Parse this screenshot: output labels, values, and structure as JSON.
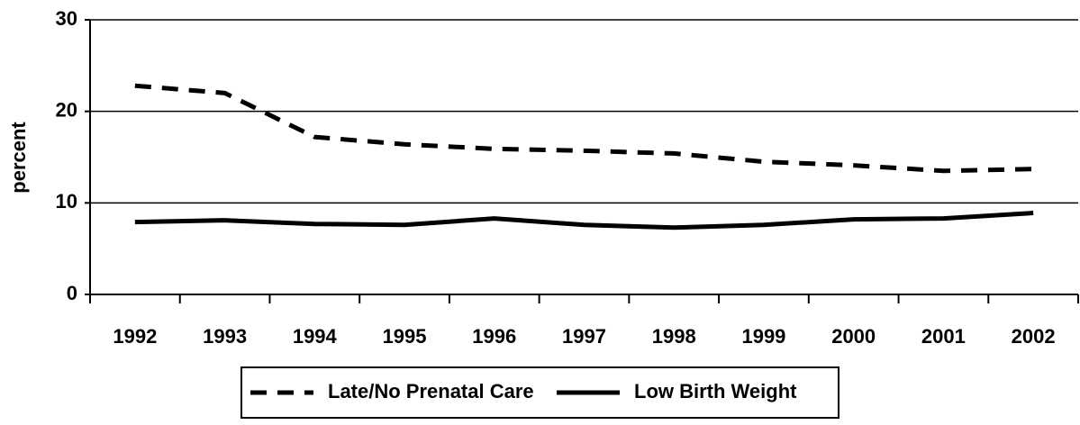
{
  "chart_data": {
    "type": "line",
    "y_label": "percent",
    "categories": [
      "1992",
      "1993",
      "1994",
      "1995",
      "1996",
      "1997",
      "1998",
      "1999",
      "2000",
      "2001",
      "2002"
    ],
    "series": [
      {
        "name": "Late/No Prenatal Care",
        "color": "#000000",
        "style": "dashed",
        "values": [
          22.8,
          22.0,
          17.2,
          16.4,
          15.9,
          15.7,
          15.4,
          14.5,
          14.1,
          13.5,
          13.7
        ]
      },
      {
        "name": "Low Birth Weight",
        "color": "#000000",
        "style": "solid",
        "values": [
          7.9,
          8.1,
          7.7,
          7.6,
          8.3,
          7.6,
          7.3,
          7.6,
          8.2,
          8.3,
          8.9
        ]
      }
    ],
    "ylim": [
      0,
      30
    ],
    "yticks": [
      0,
      10,
      20,
      30
    ],
    "grid": true,
    "legend": "bottom"
  }
}
